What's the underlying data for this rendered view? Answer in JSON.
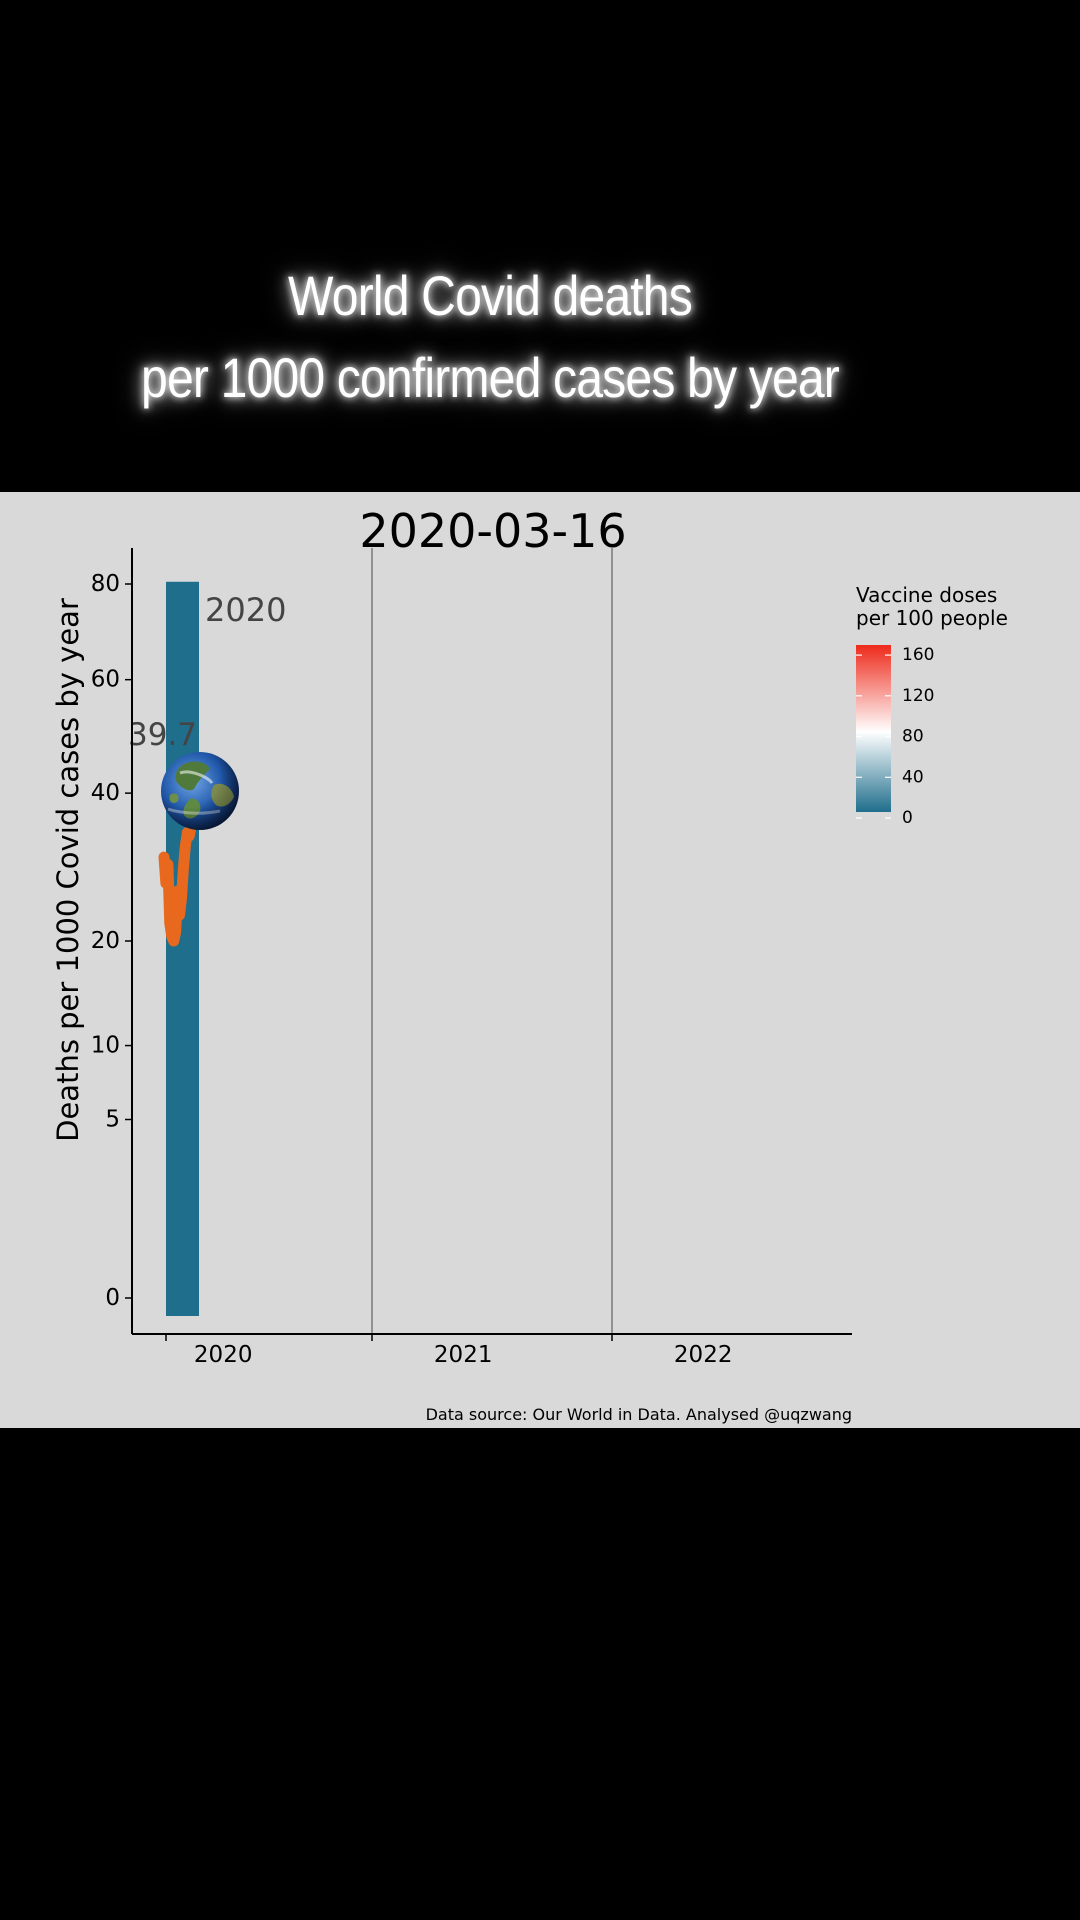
{
  "headline": {
    "line1": "World Covid deaths",
    "line2": "per 1000 confirmed cases by year"
  },
  "chart_data": {
    "type": "bar",
    "title": "2020-03-16",
    "xlabel": "",
    "ylabel": "Deaths per 1000 Covid cases by year",
    "categories": [
      "2020",
      "2021",
      "2022"
    ],
    "y_ticks": [
      0,
      5,
      10,
      20,
      40,
      60,
      80
    ],
    "y_scale": "sqrt",
    "ylim": [
      0,
      84
    ],
    "grid": false,
    "bars": [
      {
        "category": "2020",
        "value": 80.5,
        "label": "2020",
        "vaccine_doses": 0
      }
    ],
    "line_series": {
      "color": "#e8691d",
      "y": [
        30.5,
        27,
        29.5,
        22,
        20.5,
        20,
        21,
        26,
        23,
        25,
        29,
        32,
        34,
        33.5,
        35,
        36,
        36.5
      ]
    },
    "current_value_label": "39.7",
    "current_value": 39.7,
    "marker_icon": "earth-globe-icon",
    "legend": {
      "title_line1": "Vaccine doses",
      "title_line2": "per 100 people",
      "ticks": [
        "160",
        "120",
        "80",
        "40",
        "0"
      ],
      "tick_values": [
        160,
        120,
        80,
        40,
        0
      ],
      "range": [
        0,
        165
      ],
      "position": "right",
      "colors": [
        "#1f6e8c",
        "#ffffff",
        "#ee2a1b"
      ]
    },
    "caption": "Data source: Our World in Data. Analysed @uqzwang"
  }
}
